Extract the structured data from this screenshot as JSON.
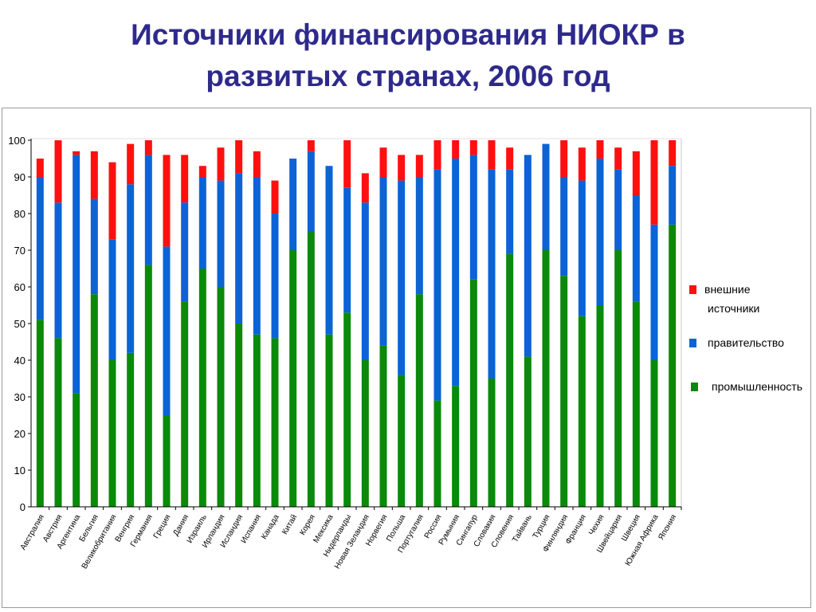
{
  "title_line1": "Источники финансирования НИОКР в",
  "title_line2": "развитых странах, 2006 год",
  "chart_data": {
    "type": "bar",
    "stacked": true,
    "title": "Источники финансирования НИОКР в развитых странах, 2006 год",
    "xlabel": "",
    "ylabel": "",
    "ylim": [
      0,
      100
    ],
    "yticks": [
      0,
      10,
      20,
      30,
      40,
      50,
      60,
      70,
      80,
      90,
      100
    ],
    "grid": false,
    "legend_position": "right",
    "categories": [
      "Австралия",
      "Австрия",
      "Аргентина",
      "Бельгия",
      "Великобритания",
      "Венгрия",
      "Германия",
      "Греция",
      "Дания",
      "Израиль",
      "Ирландия",
      "Исландия",
      "Испания",
      "Канада",
      "Китай",
      "Корея",
      "Мексика",
      "Нидерланды",
      "Новая Зеландия",
      "Норвегия",
      "Польша",
      "Португалия",
      "Россия",
      "Румыния",
      "Сингапур",
      "Словакия",
      "Словения",
      "Тайвань",
      "Турция",
      "Финляндия",
      "Франция",
      "Чехия",
      "Швейцария",
      "Швеция",
      "Южная Африка",
      "Япония"
    ],
    "series": [
      {
        "name": "промышленность",
        "color": "#0a8a0a",
        "values": [
          51,
          46,
          31,
          58,
          40,
          42,
          66,
          25,
          56,
          65,
          60,
          50,
          47,
          46,
          70,
          75,
          47,
          53,
          40,
          44,
          36,
          58,
          29,
          33,
          62,
          35,
          69,
          41,
          70,
          63,
          52,
          55,
          70,
          56,
          40,
          77
        ]
      },
      {
        "name": "правительство",
        "color": "#0b63d6",
        "values": [
          39,
          37,
          65,
          26,
          33,
          46,
          30,
          46,
          27,
          25,
          29,
          41,
          43,
          34,
          25,
          22,
          46,
          34,
          43,
          46,
          53,
          32,
          63,
          62,
          34,
          57,
          23,
          55,
          29,
          27,
          37,
          40,
          22,
          29,
          37,
          16
        ]
      },
      {
        "name": "внешние источники",
        "color": "#ff1010",
        "values": [
          5,
          17,
          1,
          13,
          21,
          11,
          4,
          25,
          13,
          3,
          9,
          9,
          7,
          9,
          0,
          3,
          0,
          13,
          8,
          8,
          7,
          6,
          8,
          5,
          4,
          8,
          6,
          0,
          0,
          10,
          9,
          5,
          6,
          12,
          23,
          7
        ]
      }
    ]
  },
  "legend": {
    "external_line1": "внешние",
    "external_line2": "источники",
    "government": "правительство",
    "industry": "промышленность"
  }
}
